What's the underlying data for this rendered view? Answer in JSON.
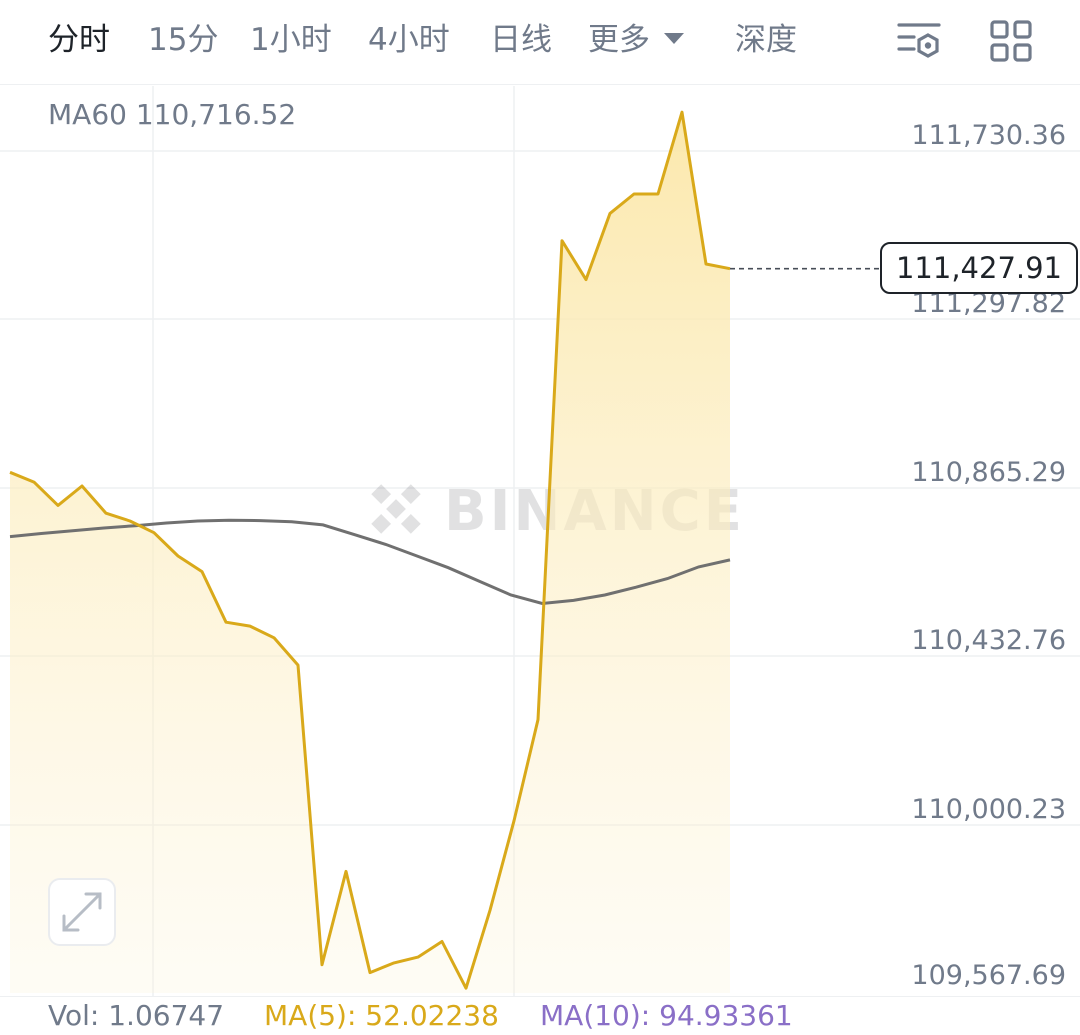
{
  "tabs": [
    {
      "label": "分时",
      "active": true
    },
    {
      "label": "15分",
      "active": false
    },
    {
      "label": "1小时",
      "active": false
    },
    {
      "label": "4小时",
      "active": false
    },
    {
      "label": "日线",
      "active": false
    },
    {
      "label": "更多",
      "active": false
    },
    {
      "label": "深度",
      "active": false
    }
  ],
  "toolbar": {
    "settings_icon": "chart-settings-icon",
    "layout_icon": "grid-layout-icon"
  },
  "ma60_label": "MA60 110,716.52",
  "current_price": "111,427.91",
  "watermark": "BINANCE",
  "colors": {
    "price_line": "#d9a91a",
    "ma_line": "#707070",
    "fill_top": "#fbe7a8",
    "text_secondary": "#707a8a",
    "ma10": "#8a6fc7"
  },
  "chart_data": {
    "type": "area",
    "y_ticks": [
      "111,730.36",
      "111,297.82",
      "110,865.29",
      "110,432.76",
      "110,000.23",
      "109,567.69"
    ],
    "ylim": [
      109567.69,
      111730.36
    ],
    "price": [
      110905,
      110880,
      110820,
      110870,
      110800,
      110780,
      110750,
      110690,
      110650,
      110520,
      110510,
      110480,
      110410,
      109640,
      109880,
      109620,
      109645,
      109660,
      109700,
      109580,
      109780,
      110010,
      110270,
      111500,
      111400,
      111570,
      111620,
      111620,
      111830,
      111440,
      111428
    ],
    "ma60": [
      110740,
      110748,
      110755,
      110762,
      110768,
      110775,
      110780,
      110782,
      110781,
      110778,
      110770,
      110745,
      110720,
      110690,
      110660,
      110625,
      110590,
      110568,
      110576,
      110590,
      110610,
      110632,
      110662,
      110680
    ]
  },
  "footer": {
    "vol": "Vol: 1.06747",
    "ma5": "MA(5): 52.02238",
    "ma10": "MA(10): 94.93361"
  }
}
